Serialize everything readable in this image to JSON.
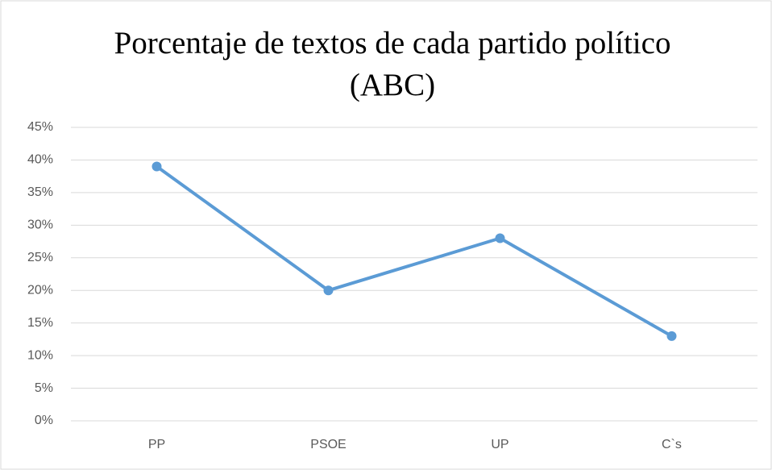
{
  "chart_data": {
    "type": "line",
    "title": "Porcentaje de textos de cada partido político (ABC)",
    "categories": [
      "PP",
      "PSOE",
      "UP",
      "C`s"
    ],
    "series": [
      {
        "name": "Porcentaje",
        "color": "#5b9bd5",
        "values": [
          39,
          20,
          28,
          13
        ]
      }
    ],
    "ylim": [
      0,
      45
    ],
    "yticks": [
      {
        "value": 0,
        "label": "0%"
      },
      {
        "value": 5,
        "label": "5%"
      },
      {
        "value": 10,
        "label": "10%"
      },
      {
        "value": 15,
        "label": "15%"
      },
      {
        "value": 20,
        "label": "20%"
      },
      {
        "value": 25,
        "label": "25%"
      },
      {
        "value": 30,
        "label": "30%"
      },
      {
        "value": 35,
        "label": "35%"
      },
      {
        "value": 40,
        "label": "40%"
      },
      {
        "value": 45,
        "label": "45%"
      }
    ],
    "grid": true
  }
}
